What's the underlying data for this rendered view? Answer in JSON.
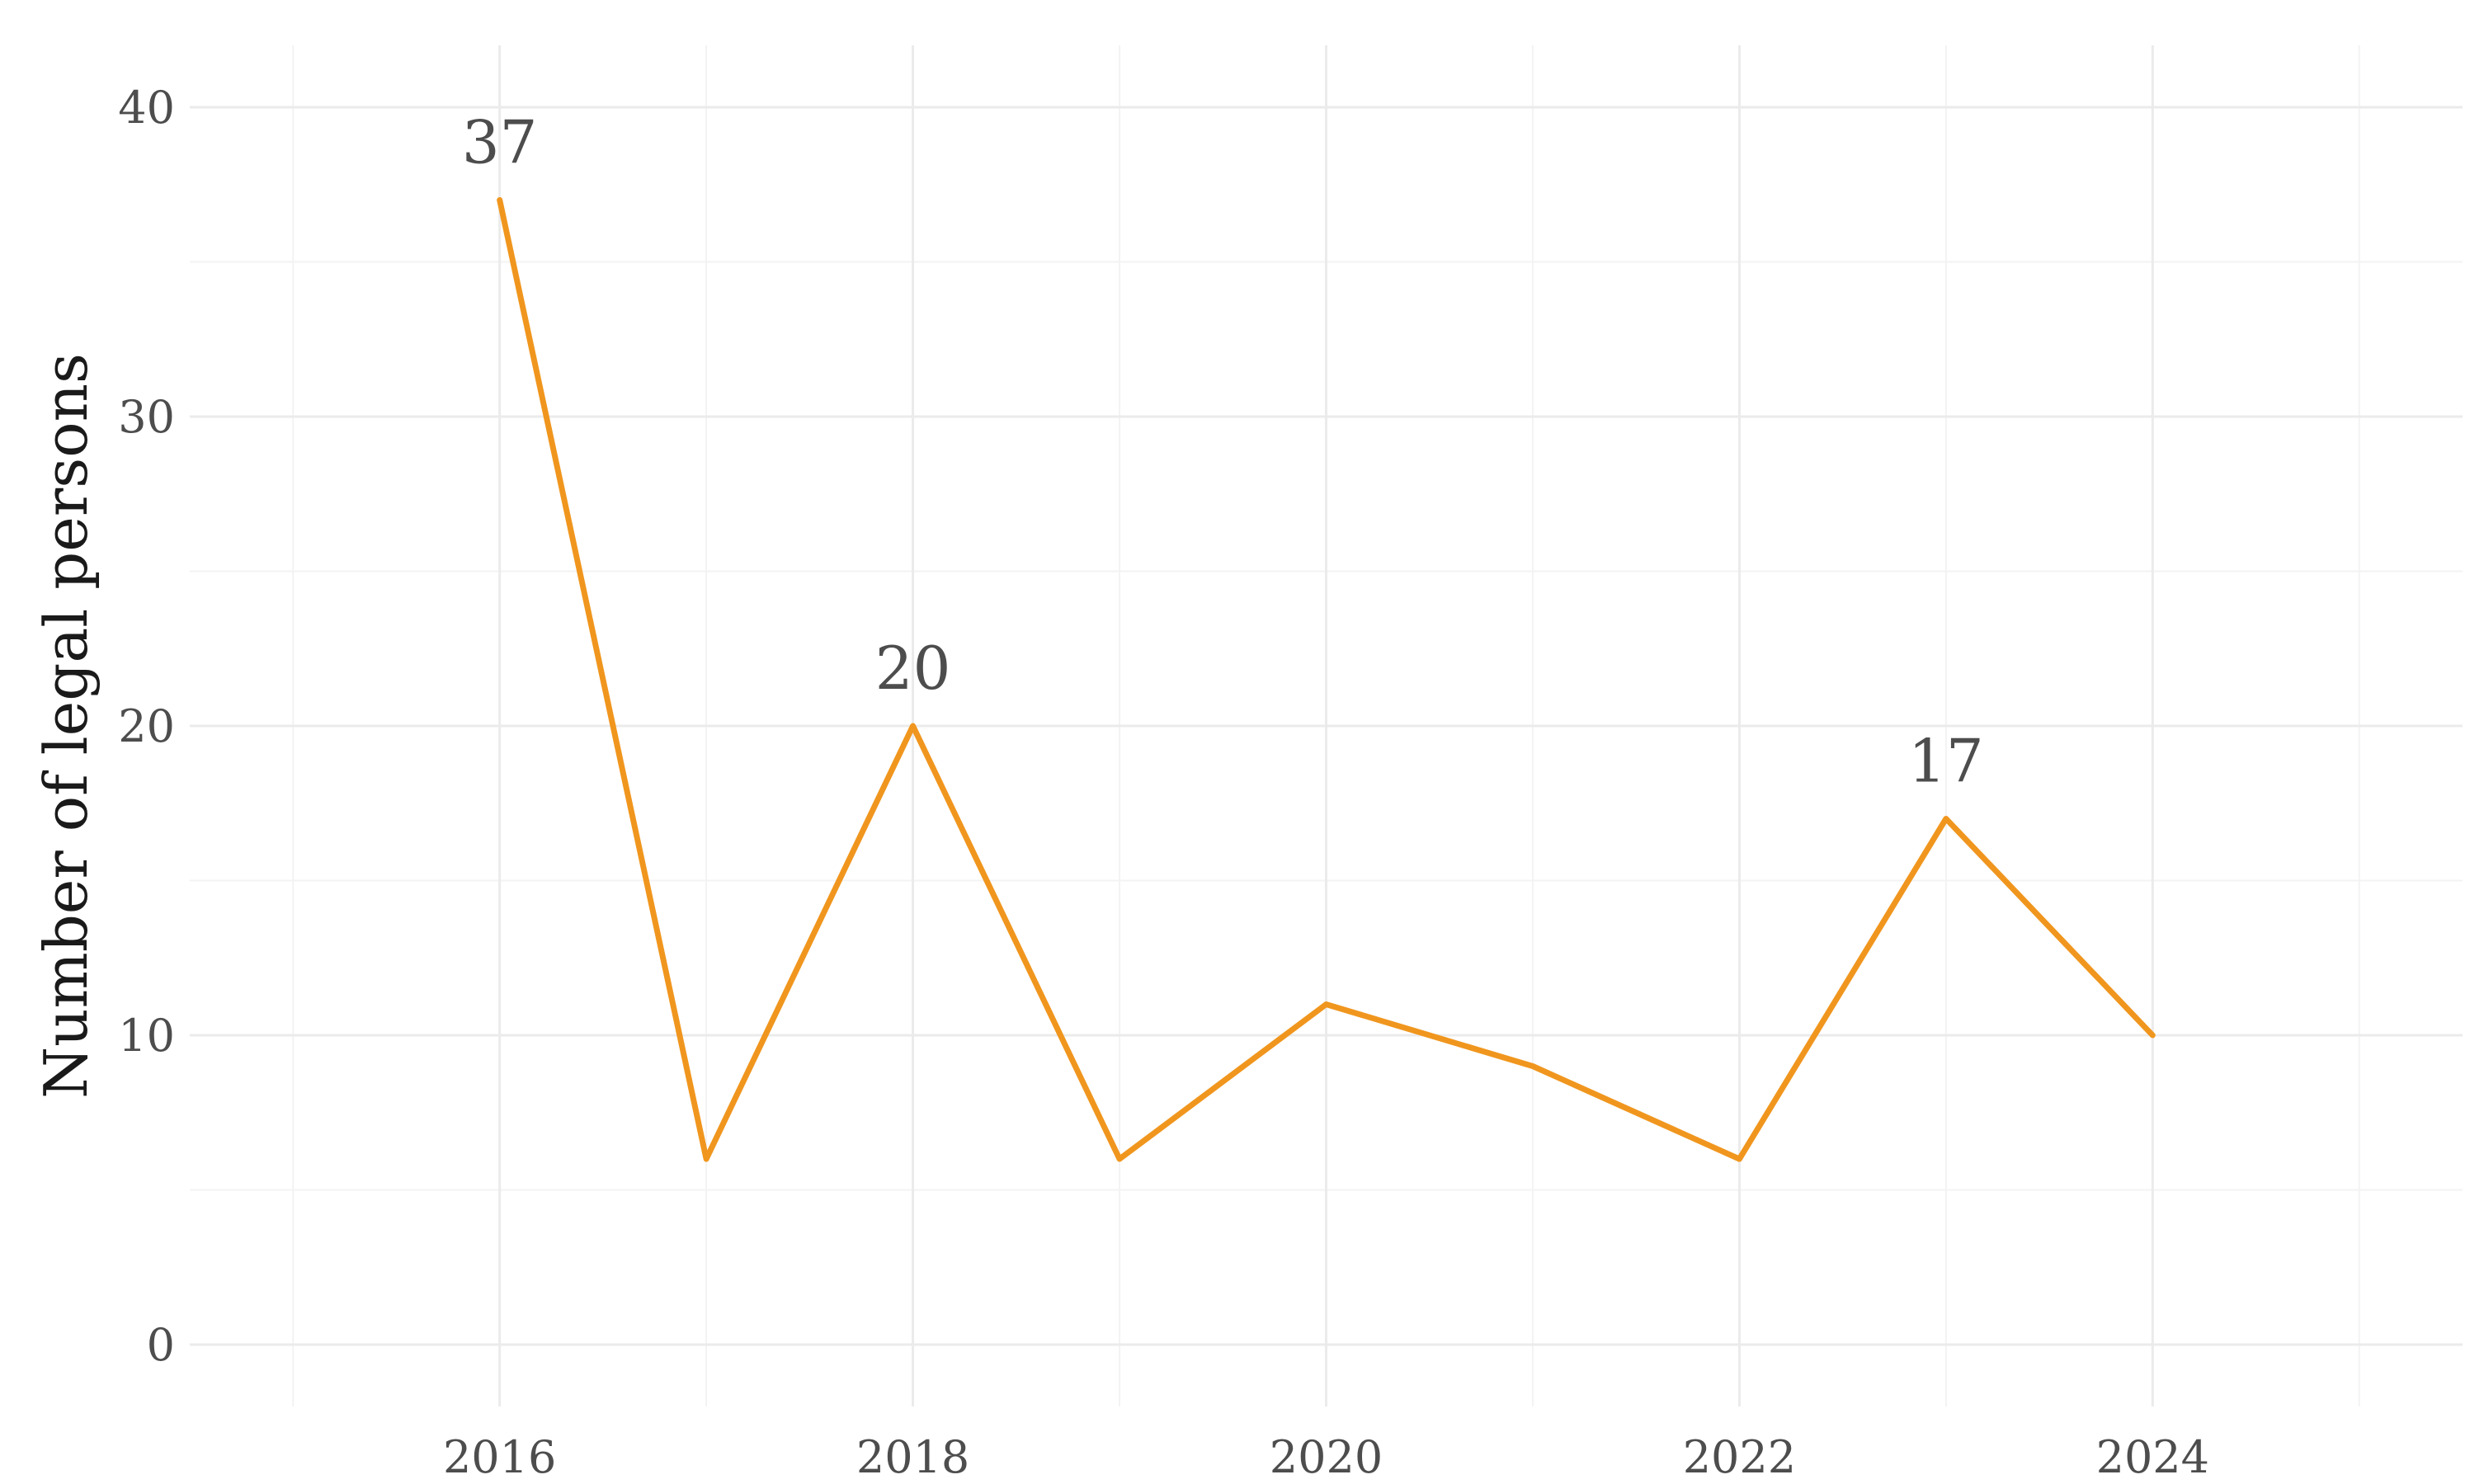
{
  "chart_data": {
    "type": "line",
    "title": "",
    "xlabel": "",
    "ylabel": "Number of legal persons",
    "x": [
      2016,
      2017,
      2018,
      2019,
      2020,
      2021,
      2022,
      2023,
      2024
    ],
    "series": [
      {
        "values": [
          37,
          6,
          20,
          6,
          11,
          9,
          6,
          17,
          10
        ],
        "color": "#f0961e"
      }
    ],
    "data_labels": [
      {
        "x": 2016,
        "y": 37,
        "text": "37"
      },
      {
        "x": 2018,
        "y": 20,
        "text": "20"
      },
      {
        "x": 2023,
        "y": 17,
        "text": "17"
      }
    ],
    "xlim": [
      2014.5,
      2025.5
    ],
    "ylim": [
      -2,
      42
    ],
    "x_ticks": [
      2016,
      2018,
      2020,
      2022,
      2024
    ],
    "y_ticks": [
      0,
      10,
      20,
      30,
      40
    ],
    "x_tick_labels": [
      "2016",
      "2018",
      "2020",
      "2022",
      "2024"
    ],
    "y_tick_labels": [
      "0",
      "10",
      "20",
      "30",
      "40"
    ],
    "x_minor_ticks": [
      2015,
      2017,
      2019,
      2021,
      2023,
      2025
    ],
    "y_minor_ticks": [
      5,
      15,
      25,
      35
    ],
    "grid": true,
    "legend": "none"
  }
}
